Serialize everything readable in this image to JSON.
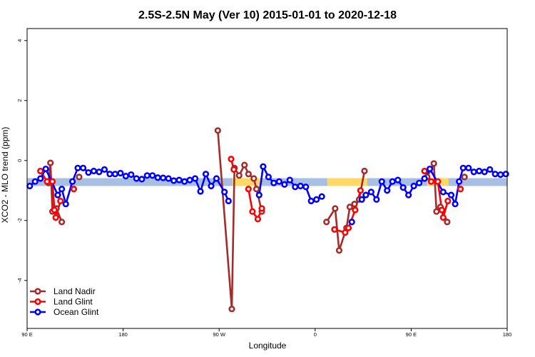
{
  "chart_data": {
    "type": "line",
    "title": "2.5S-2.5N May (Ver 10)   2015-01-01 to 2020-12-18",
    "xlabel": "Longitude",
    "ylabel": "XCO2 - MLO trend (ppm)",
    "xlim": [
      0,
      360
    ],
    "ylim": [
      -5.6,
      4.4
    ],
    "xticks": [
      {
        "x": 0,
        "label": "90 E"
      },
      {
        "x": 72,
        "label": "180"
      },
      {
        "x": 144,
        "label": "90 W"
      },
      {
        "x": 216,
        "label": "0"
      },
      {
        "x": 288,
        "label": "90 E"
      },
      {
        "x": 360,
        "label": "180"
      }
    ],
    "yticks": [
      {
        "y": -4,
        "label": "-4"
      },
      {
        "y": -2,
        "label": "-2"
      },
      {
        "y": 0,
        "label": "0"
      },
      {
        "y": 2,
        "label": "2"
      },
      {
        "y": 4,
        "label": "4"
      }
    ],
    "reference_band": {
      "y": -0.72,
      "color": "#a7bfe3"
    },
    "highlight_segments": [
      {
        "x0": 154,
        "x1": 176,
        "y": -0.72,
        "color": "#ffd966"
      },
      {
        "x0": 225,
        "x1": 255,
        "y": -0.72,
        "color": "#ffd966"
      },
      {
        "x0": 300,
        "x1": 316,
        "y": -0.72,
        "color": "#ffd966"
      }
    ],
    "legend_position": "bottom-left",
    "series": [
      {
        "name": "Land Nadir",
        "color": "#a52a2a",
        "segments": [
          [
            [
              16,
              -0.75
            ],
            [
              17.5,
              -0.08
            ],
            [
              19,
              -1.7
            ],
            [
              22,
              -1.6
            ],
            [
              26,
              -2.05
            ]
          ],
          [
            [
              39,
              -0.55
            ]
          ],
          [
            [
              143,
              1
            ],
            [
              153.5,
              -4.95
            ],
            [
              155.5,
              -0.25
            ],
            [
              159,
              -0.5
            ],
            [
              163,
              -0.15
            ],
            [
              166,
              -0.45
            ],
            [
              170,
              -0.6
            ],
            [
              172,
              -0.95
            ],
            [
              176,
              -1.7
            ]
          ],
          [
            [
              224.5,
              -2.05
            ],
            [
              231,
              -1.6
            ],
            [
              234,
              -3
            ],
            [
              239.5,
              -2.25
            ],
            [
              242,
              -1.55
            ],
            [
              245.5,
              -1.45
            ],
            [
              249,
              -1.3
            ],
            [
              253,
              -0.35
            ]
          ],
          [
            [
              300,
              -0.55
            ],
            [
              305,
              -0.1
            ],
            [
              307,
              -1.7
            ],
            [
              310,
              -1.55
            ],
            [
              315,
              -2.05
            ]
          ],
          [
            [
              328,
              -0.55
            ]
          ]
        ]
      },
      {
        "name": "Land Glint",
        "color": "#ff0000",
        "segments": [
          [
            [
              10,
              -0.35
            ],
            [
              15,
              -0.7
            ],
            [
              19,
              -0.7
            ],
            [
              20.5,
              -1.65
            ],
            [
              21.5,
              -1.9
            ],
            [
              25,
              -1.35
            ]
          ],
          [
            [
              35,
              -0.95
            ]
          ],
          [
            [
              153,
              0.05
            ],
            [
              155,
              -0.3
            ]
          ],
          [
            [
              166,
              -0.95
            ],
            [
              169,
              -1.7
            ],
            [
              173,
              -1.95
            ],
            [
              176,
              -1.6
            ]
          ],
          [
            [
              230.5,
              -2.3
            ],
            [
              238.5,
              -2.4
            ],
            [
              241,
              -2.25
            ],
            [
              246,
              -1.65
            ],
            [
              250,
              -1
            ]
          ],
          [
            [
              298,
              -0.35
            ],
            [
              303,
              -0.7
            ],
            [
              308,
              -0.7
            ],
            [
              311,
              -1.65
            ],
            [
              312,
              -1.9
            ],
            [
              315.5,
              -1.35
            ]
          ],
          [
            [
              325,
              -0.95
            ]
          ]
        ]
      },
      {
        "name": "Ocean Glint",
        "color": "#0000ff",
        "segments": [
          [
            [
              2,
              -0.85
            ],
            [
              6,
              -0.7
            ],
            [
              10,
              -0.6
            ],
            [
              14,
              -0.28
            ],
            [
              23,
              -1.15
            ],
            [
              26,
              -0.95
            ],
            [
              29,
              -1.45
            ],
            [
              34,
              -0.7
            ],
            [
              38,
              -0.25
            ],
            [
              42,
              -0.25
            ],
            [
              46,
              -0.4
            ],
            [
              50,
              -0.35
            ],
            [
              54,
              -0.38
            ],
            [
              58,
              -0.3
            ],
            [
              62,
              -0.45
            ],
            [
              66,
              -0.45
            ],
            [
              70,
              -0.42
            ],
            [
              74,
              -0.52
            ],
            [
              78,
              -0.47
            ],
            [
              82,
              -0.6
            ],
            [
              86,
              -0.62
            ],
            [
              90,
              -0.5
            ],
            [
              94,
              -0.5
            ],
            [
              98,
              -0.57
            ],
            [
              102,
              -0.58
            ],
            [
              106,
              -0.6
            ],
            [
              110,
              -0.67
            ],
            [
              114,
              -0.65
            ],
            [
              118,
              -0.7
            ],
            [
              122,
              -0.65
            ],
            [
              126,
              -0.6
            ],
            [
              130,
              -1.03
            ],
            [
              134,
              -0.45
            ],
            [
              138,
              -0.85
            ],
            [
              142,
              -0.6
            ],
            [
              148,
              -1.05
            ],
            [
              151,
              -1.35
            ]
          ],
          [
            [
              174,
              -1.15
            ],
            [
              177,
              -0.2
            ],
            [
              181,
              -0.55
            ],
            [
              185,
              -0.75
            ],
            [
              189,
              -0.7
            ],
            [
              193,
              -0.8
            ],
            [
              197,
              -0.65
            ],
            [
              201,
              -0.88
            ],
            [
              205,
              -0.85
            ],
            [
              209,
              -0.88
            ],
            [
              213,
              -1.35
            ],
            [
              217,
              -1.3
            ],
            [
              221,
              -1.2
            ]
          ],
          [
            [
              243.5,
              -2.05
            ]
          ],
          [
            [
              251,
              -1.3
            ],
            [
              254,
              -1.15
            ],
            [
              258,
              -1.05
            ],
            [
              262,
              -1.3
            ],
            [
              266,
              -0.7
            ],
            [
              270,
              -1
            ],
            [
              274,
              -0.7
            ],
            [
              278,
              -0.65
            ],
            [
              282,
              -0.9
            ],
            [
              286,
              -1.15
            ],
            [
              290,
              -0.85
            ],
            [
              294,
              -0.75
            ],
            [
              298,
              -0.6
            ],
            [
              302,
              -0.28
            ],
            [
              312,
              -1.05
            ],
            [
              318,
              -1.15
            ],
            [
              321,
              -1.45
            ],
            [
              324,
              -0.7
            ],
            [
              327,
              -0.25
            ],
            [
              331,
              -0.25
            ],
            [
              335,
              -0.38
            ],
            [
              339,
              -0.35
            ],
            [
              343,
              -0.38
            ],
            [
              347,
              -0.3
            ],
            [
              351,
              -0.45
            ],
            [
              355,
              -0.47
            ],
            [
              359,
              -0.45
            ]
          ]
        ]
      }
    ]
  }
}
